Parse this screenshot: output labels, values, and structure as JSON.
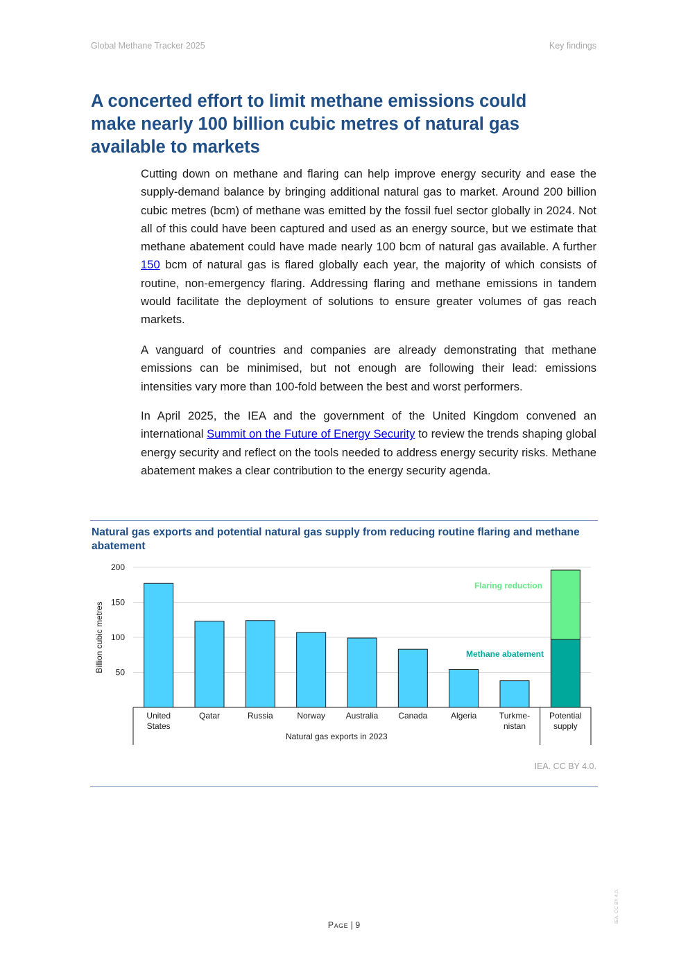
{
  "header": {
    "left": "Global Methane Tracker 2025",
    "right": "Key findings"
  },
  "title": "A concerted effort to limit methane emissions could make nearly 100 billion cubic metres of natural gas available to markets",
  "paragraphs": {
    "p1": {
      "before": "Cutting down on methane and flaring can help improve energy security and ease the supply-demand balance by bringing additional natural gas to market. Around 200 billion cubic metres (bcm) of methane was emitted by the fossil fuel sector globally in 2024. Not all of this could have been captured and used as an energy source, but we estimate that methane abatement could have made nearly 100 bcm of natural gas available. A further ",
      "link": "150",
      "after": " bcm of natural gas is flared globally each year, the majority of which consists of routine, non-emergency flaring. Addressing flaring and methane emissions in tandem would facilitate the deployment of solutions to ensure greater volumes of gas reach markets."
    },
    "p2": "A vanguard of countries and companies are already demonstrating that methane emissions can be minimised, but not enough are following their lead: emissions intensities vary more than 100-fold between the best and worst performers.",
    "p3": {
      "before": "In April 2025, the IEA and the government of the United Kingdom convened an international ",
      "link": "Summit on the Future of Energy Security",
      "after": " to review the trends shaping global energy security and reflect on the tools needed to address energy security risks. Methane abatement makes a clear contribution to the energy security agenda."
    }
  },
  "figure": {
    "title": "Natural gas exports and potential natural gas supply from reducing routine flaring and methane abatement",
    "credit": "IEA. CC BY 4.0."
  },
  "chart_data": {
    "type": "bar",
    "title": "Natural gas exports and potential natural gas supply from reducing routine flaring and methane abatement",
    "ylabel": "Billion cubic metres",
    "ylim": [
      0,
      200
    ],
    "yticks": [
      50,
      100,
      150,
      200
    ],
    "grid": true,
    "group_label": "Natural gas exports in 2023",
    "categories": [
      [
        "United",
        "States"
      ],
      [
        "Qatar"
      ],
      [
        "Russia"
      ],
      [
        "Norway"
      ],
      [
        "Australia"
      ],
      [
        "Canada"
      ],
      [
        "Algeria"
      ],
      [
        "Turkme-",
        "nistan"
      ],
      [
        "Potential",
        "supply"
      ]
    ],
    "series": [
      {
        "name": "Natural gas exports in 2023",
        "color": "#4dd2ff",
        "values": [
          177,
          123,
          124,
          107,
          99,
          83,
          54,
          38,
          null
        ]
      },
      {
        "name": "Methane abatement",
        "color": "#00a89c",
        "values": [
          null,
          null,
          null,
          null,
          null,
          null,
          null,
          null,
          97
        ]
      },
      {
        "name": "Flaring reduction",
        "color": "#66f08e",
        "values": [
          null,
          null,
          null,
          null,
          null,
          null,
          null,
          null,
          99
        ]
      }
    ],
    "annotations": [
      {
        "text": "Flaring reduction",
        "color": "#66e88a"
      },
      {
        "text": "Methane abatement",
        "color": "#00a89c"
      }
    ]
  },
  "footer": {
    "page_word": "Page",
    "separator": " | ",
    "page_number": "9"
  },
  "side_license": "IEA. CC BY 4.0.",
  "colors": {
    "title": "#1f4f86",
    "rule": "#7e97b8",
    "link": "#0000ee"
  }
}
